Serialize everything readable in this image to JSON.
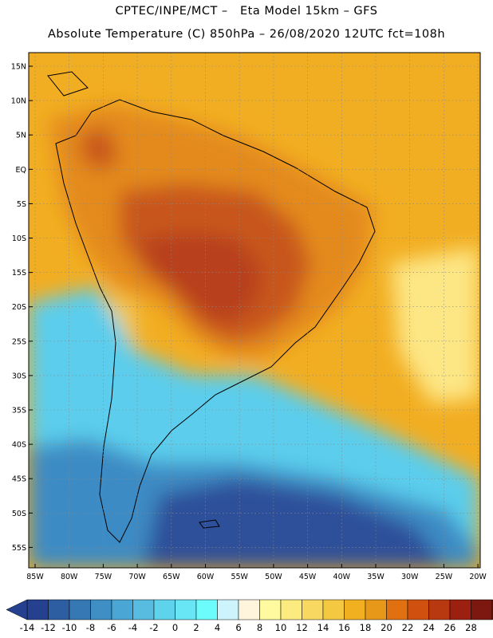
{
  "header": {
    "line1": "CPTEC/INPE/MCT –   Eta Model 15km – GFS",
    "line2": "Absolute Temperature (C) 850hPa – 26/08/2020 12UTC fct=108h"
  },
  "map": {
    "lat_labels": [
      "15N",
      "10N",
      "5N",
      "EQ",
      "5S",
      "10S",
      "15S",
      "20S",
      "25S",
      "30S",
      "35S",
      "40S",
      "45S",
      "50S",
      "55S"
    ],
    "lon_labels": [
      "85W",
      "80W",
      "75W",
      "70W",
      "65W",
      "60W",
      "55W",
      "50W",
      "45W",
      "40W",
      "35W",
      "30W",
      "25W",
      "20W"
    ],
    "colors": {
      "ocean_warm": "#f2ae22",
      "ocean_hot": "#f0a820",
      "continent_hot": "#e48a1c",
      "core_hot": "#c8561a",
      "core_hottest": "#b8401a",
      "andes": "#f0cc70",
      "yellow_patch": "#fde684",
      "south_cold": "#5bcdec",
      "deep_cold": "#2f4f9a",
      "mid_cold": "#3c8bc4",
      "grid_line": "#888888",
      "coast_line": "#000000"
    }
  },
  "colorbar": {
    "labels": [
      "-14",
      "-12",
      "-10",
      "-8",
      "-6",
      "-4",
      "-2",
      "0",
      "2",
      "4",
      "6",
      "8",
      "10",
      "12",
      "14",
      "16",
      "18",
      "20",
      "22",
      "24",
      "26",
      "28"
    ],
    "colors": [
      "#24408f",
      "#2d5ea2",
      "#3578b4",
      "#3f8ec4",
      "#4aa6d4",
      "#57bce0",
      "#5fd2ec",
      "#69e6f6",
      "#6dfcfc",
      "#cdf4fc",
      "#fff4dc",
      "#fffaa0",
      "#fcec80",
      "#f8d860",
      "#f4c840",
      "#f0b020",
      "#e89818",
      "#e07010",
      "#d05010",
      "#b83810",
      "#9c2010",
      "#7c1810"
    ]
  }
}
